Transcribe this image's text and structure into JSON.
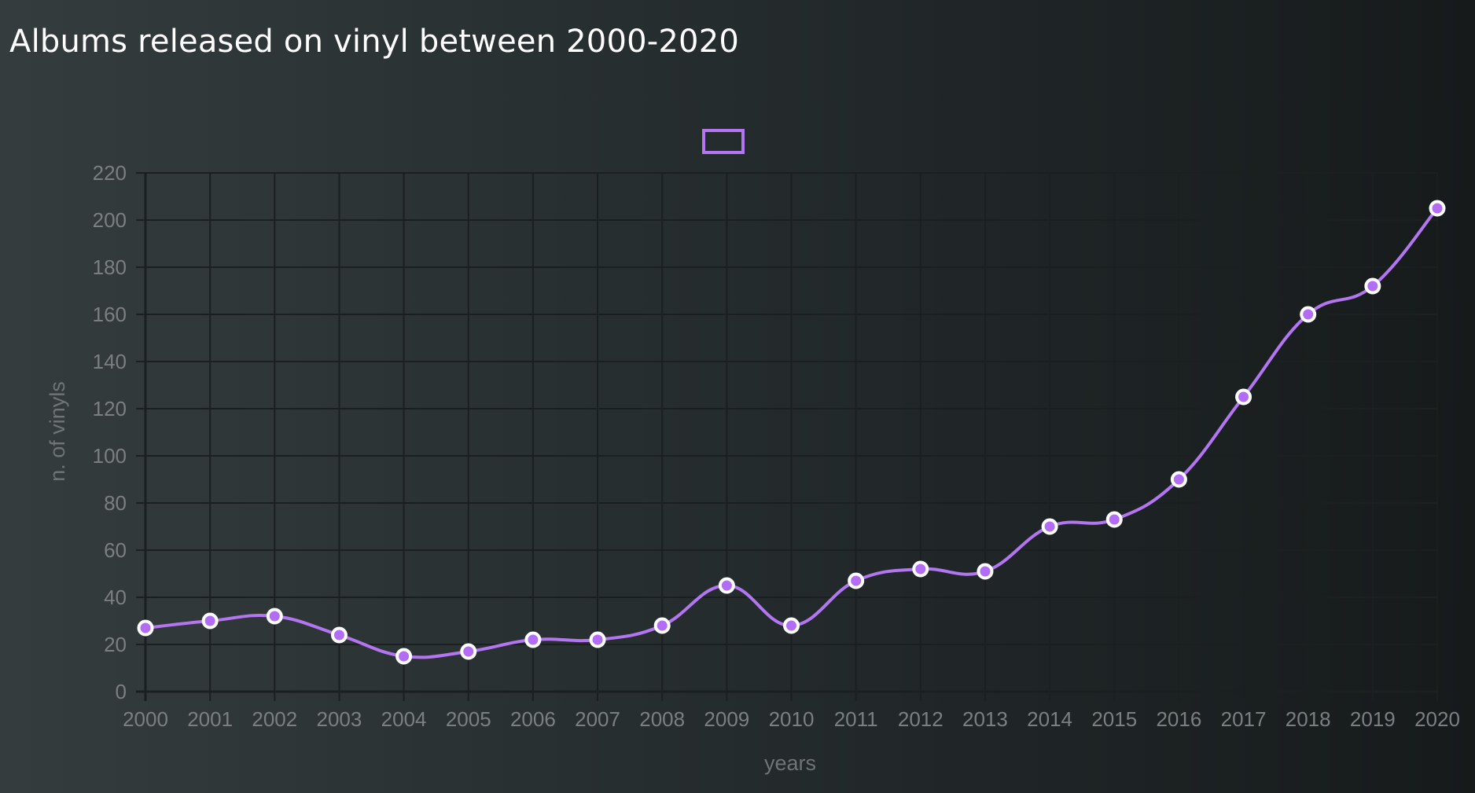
{
  "title": "Albums released on vinyl between 2000-2020",
  "colors": {
    "line": "#b476f0",
    "point_fill": "#b36cf5",
    "point_stroke": "#ffffff",
    "grid": "#1b1f20",
    "tick_text": "#7b7f82"
  },
  "chart_data": {
    "type": "line",
    "title": "Albums released on vinyl between 2000-2020",
    "xlabel": "years",
    "ylabel": "n. of vinyls",
    "categories": [
      "2000",
      "2001",
      "2002",
      "2003",
      "2004",
      "2005",
      "2006",
      "2007",
      "2008",
      "2009",
      "2010",
      "2011",
      "2012",
      "2013",
      "2014",
      "2015",
      "2016",
      "2017",
      "2018",
      "2019",
      "2020"
    ],
    "series": [
      {
        "values": [
          27,
          30,
          32,
          24,
          15,
          17,
          22,
          22,
          28,
          45,
          28,
          47,
          52,
          51,
          70,
          73,
          90,
          125,
          160,
          172,
          205
        ]
      }
    ],
    "ylim": [
      0,
      220
    ],
    "yticks": [
      0,
      20,
      40,
      60,
      80,
      100,
      120,
      140,
      160,
      180,
      200,
      220
    ],
    "grid": true,
    "legend": "top-center",
    "curve": "smooth"
  }
}
